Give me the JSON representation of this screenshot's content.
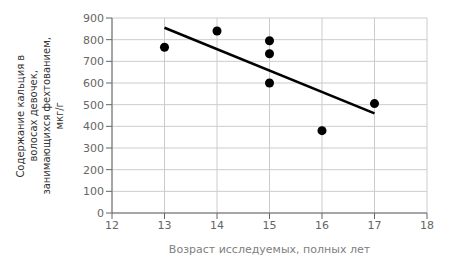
{
  "chart_data": {
    "type": "scatter",
    "xlabel": "Возраст исследуемых, полных лет",
    "ylabel": "Содержание кальция в\nволосах девочек,\nзанимающихся фехтованием,\nмкг/г",
    "series": [
      {
        "type": "scatter",
        "color": "#000000",
        "x": [
          13,
          14,
          15,
          15,
          15,
          16,
          17
        ],
        "values": [
          765,
          840,
          600,
          735,
          795,
          380,
          505
        ]
      },
      {
        "type": "line",
        "color": "#000000",
        "x": [
          13,
          17
        ],
        "values": [
          855,
          460
        ]
      }
    ],
    "xlim": [
      12,
      18
    ],
    "ylim": [
      0,
      900
    ],
    "xticks": [
      12,
      13,
      14,
      15,
      16,
      17,
      18
    ],
    "yticks": [
      0,
      100,
      200,
      300,
      400,
      500,
      600,
      700,
      800,
      900
    ],
    "grid": true
  }
}
